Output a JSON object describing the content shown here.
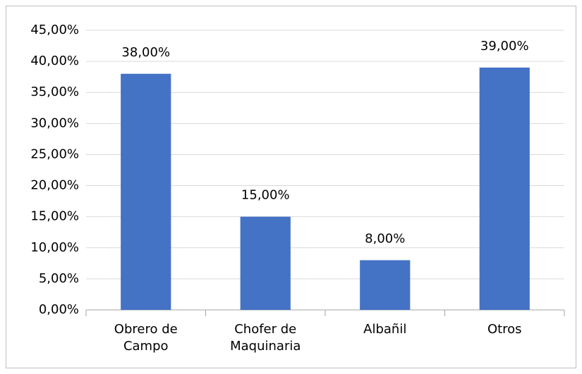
{
  "chart_data": {
    "type": "bar",
    "categories": [
      "Obrero de Campo",
      "Chofer de Maquinaria",
      "Albañil",
      "Otros"
    ],
    "values": [
      38,
      15,
      8,
      39
    ],
    "value_labels": [
      "38,00%",
      "15,00%",
      "8,00%",
      "39,00%"
    ],
    "color": "#4472c4",
    "ylim": [
      0,
      45
    ],
    "yticks": [
      {
        "value": 0,
        "label": "0,00%"
      },
      {
        "value": 5,
        "label": "5,00%"
      },
      {
        "value": 10,
        "label": "10,00%"
      },
      {
        "value": 15,
        "label": "15,00%"
      },
      {
        "value": 20,
        "label": "20,00%"
      },
      {
        "value": 25,
        "label": "25,00%"
      },
      {
        "value": 30,
        "label": "30,00%"
      },
      {
        "value": 35,
        "label": "35,00%"
      },
      {
        "value": 40,
        "label": "40,00%"
      },
      {
        "value": 45,
        "label": "45,00%"
      }
    ],
    "grid": true
  }
}
